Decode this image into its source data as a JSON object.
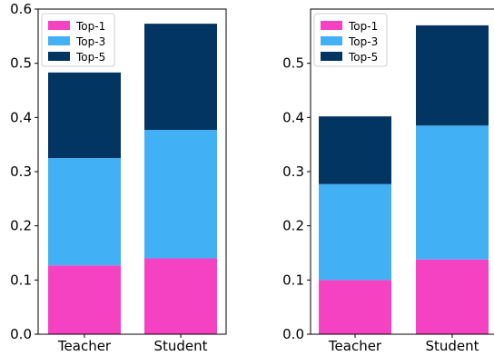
{
  "chart_data": [
    {
      "type": "bar",
      "stacked": true,
      "categories": [
        "Teacher",
        "Student"
      ],
      "series": [
        {
          "name": "Top-1",
          "values": [
            0.127,
            0.14
          ]
        },
        {
          "name": "Top-3",
          "values": [
            0.198,
            0.237
          ]
        },
        {
          "name": "Top-5",
          "values": [
            0.158,
            0.196
          ]
        }
      ],
      "ylim": [
        0,
        0.6
      ],
      "yticks": [
        "0.0",
        "0.1",
        "0.2",
        "0.3",
        "0.4",
        "0.5",
        "0.6"
      ],
      "grid": false,
      "legend_position": "top-left"
    },
    {
      "type": "bar",
      "stacked": true,
      "categories": [
        "Teacher",
        "Student"
      ],
      "series": [
        {
          "name": "Top-1",
          "values": [
            0.1,
            0.138
          ]
        },
        {
          "name": "Top-3",
          "values": [
            0.177,
            0.247
          ]
        },
        {
          "name": "Top-5",
          "values": [
            0.125,
            0.185
          ]
        }
      ],
      "ylim": [
        0,
        0.6
      ],
      "yticks": [
        "0.0",
        "0.1",
        "0.2",
        "0.3",
        "0.4",
        "0.5"
      ],
      "grid": false,
      "legend_position": "top-left"
    }
  ],
  "colors": {
    "Top-1": "#f542c2",
    "Top-3": "#42b0f5",
    "Top-5": "#033563"
  }
}
